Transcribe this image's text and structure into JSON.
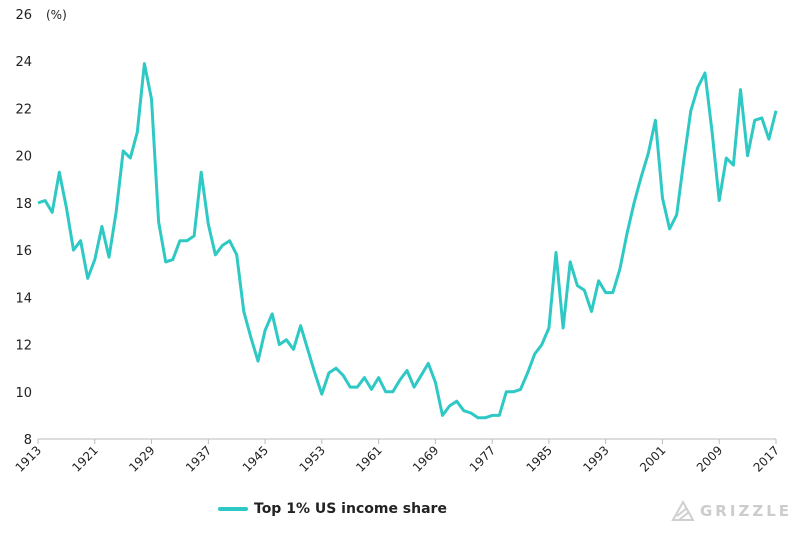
{
  "chart_data": {
    "type": "line",
    "title": "",
    "xlabel": "",
    "ylabel": "",
    "unit_label": "(%)",
    "xlim": [
      1913,
      2017
    ],
    "ylim": [
      8,
      26
    ],
    "yticks": [
      8,
      10,
      12,
      14,
      16,
      18,
      20,
      22,
      24,
      26
    ],
    "xticks": [
      1913,
      1921,
      1929,
      1937,
      1945,
      1953,
      1961,
      1969,
      1977,
      1985,
      1993,
      2001,
      2009,
      2017
    ],
    "grid": false,
    "legend_position": "bottom-left",
    "series": [
      {
        "name": "Top 1% US income share",
        "color": "#2ec9c4",
        "x": [
          1913,
          1914,
          1915,
          1916,
          1917,
          1918,
          1919,
          1920,
          1921,
          1922,
          1923,
          1924,
          1925,
          1926,
          1927,
          1928,
          1929,
          1930,
          1931,
          1932,
          1933,
          1934,
          1935,
          1936,
          1937,
          1938,
          1939,
          1940,
          1941,
          1942,
          1943,
          1944,
          1945,
          1946,
          1947,
          1948,
          1949,
          1950,
          1951,
          1952,
          1953,
          1954,
          1955,
          1956,
          1957,
          1958,
          1959,
          1960,
          1961,
          1962,
          1963,
          1964,
          1965,
          1966,
          1967,
          1968,
          1969,
          1970,
          1971,
          1972,
          1973,
          1974,
          1975,
          1976,
          1977,
          1978,
          1979,
          1980,
          1981,
          1982,
          1983,
          1984,
          1985,
          1986,
          1987,
          1988,
          1989,
          1990,
          1991,
          1992,
          1993,
          1994,
          1995,
          1996,
          1997,
          1998,
          1999,
          2000,
          2001,
          2002,
          2003,
          2004,
          2005,
          2006,
          2007,
          2008,
          2009,
          2010,
          2011,
          2012,
          2013,
          2014,
          2015,
          2016,
          2017
        ],
        "values": [
          18.0,
          18.1,
          17.6,
          19.3,
          17.8,
          16.0,
          16.4,
          14.8,
          15.6,
          17.0,
          15.7,
          17.6,
          20.2,
          19.9,
          21.0,
          23.9,
          22.4,
          17.2,
          15.5,
          15.6,
          16.4,
          16.4,
          16.6,
          19.3,
          17.1,
          15.8,
          16.2,
          16.4,
          15.8,
          13.4,
          12.3,
          11.3,
          12.6,
          13.3,
          12.0,
          12.2,
          11.8,
          12.8,
          11.8,
          10.8,
          9.9,
          10.8,
          11.0,
          10.7,
          10.2,
          10.2,
          10.6,
          10.1,
          10.6,
          10.0,
          10.0,
          10.5,
          10.9,
          10.2,
          10.7,
          11.2,
          10.4,
          9.0,
          9.4,
          9.6,
          9.2,
          9.1,
          8.9,
          8.9,
          9.0,
          9.0,
          10.0,
          10.0,
          10.1,
          10.8,
          11.6,
          12.0,
          12.7,
          15.9,
          12.7,
          15.5,
          14.5,
          14.3,
          13.4,
          14.7,
          14.2,
          14.2,
          15.2,
          16.7,
          18.0,
          19.1,
          20.1,
          21.5,
          18.2,
          16.9,
          17.5,
          19.8,
          21.9,
          22.9,
          23.5,
          21.0,
          18.1,
          19.9,
          19.6,
          22.8,
          20.0,
          21.5,
          21.6,
          20.7,
          21.9
        ]
      }
    ]
  },
  "legend": {
    "items": [
      {
        "label": "Top 1% US income share",
        "color": "#2ec9c4"
      }
    ]
  },
  "brand": {
    "name": "GRIZZLE",
    "icon": "grizzle-logo-icon",
    "color": "#cccccc"
  }
}
